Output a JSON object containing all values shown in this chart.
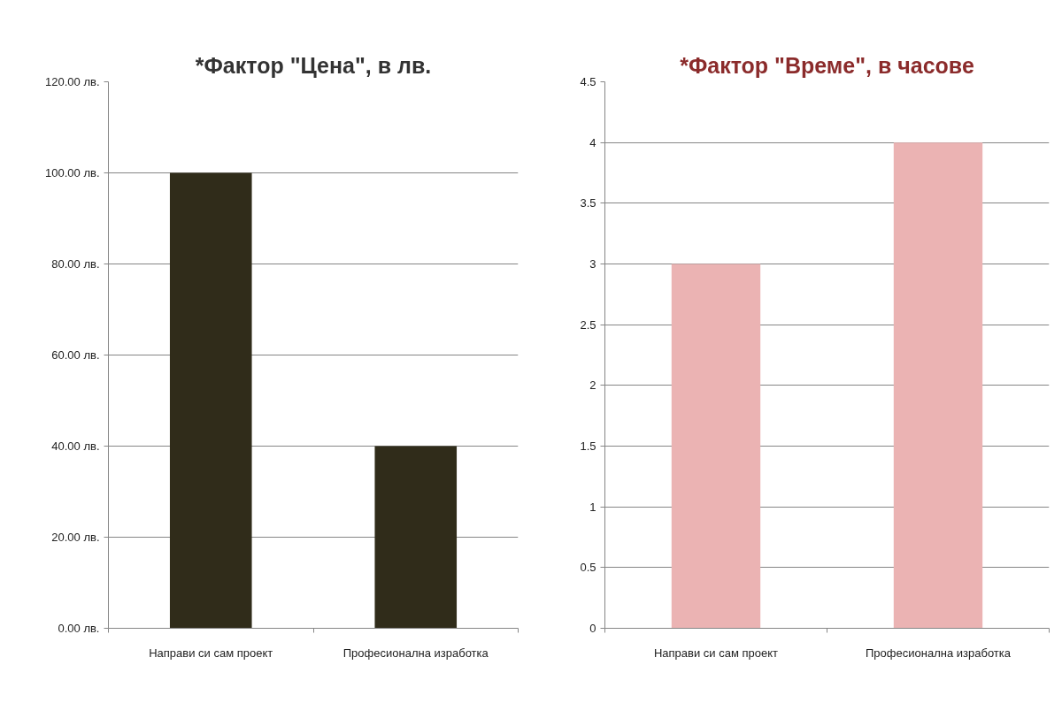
{
  "chart_data": [
    {
      "type": "bar",
      "title": "*Фактор \"Цена\", в лв.",
      "categories": [
        "Направи си сам проект",
        "Професионална изработка"
      ],
      "values": [
        100,
        40
      ],
      "color": "#302c1a",
      "ylim": [
        0,
        120
      ],
      "yticks": [
        {
          "value": 0,
          "label": "0.00 лв."
        },
        {
          "value": 20,
          "label": "20.00 лв."
        },
        {
          "value": 40,
          "label": "40.00 лв."
        },
        {
          "value": 60,
          "label": "60.00 лв."
        },
        {
          "value": 80,
          "label": "80.00 лв."
        },
        {
          "value": 100,
          "label": "100.00 лв."
        },
        {
          "value": 120,
          "label": "120.00 лв."
        }
      ],
      "grid": "y"
    },
    {
      "type": "bar",
      "title": "*Фактор \"Време\", в часове",
      "categories": [
        "Направи си сам проект",
        "Професионална изработка"
      ],
      "values": [
        3,
        4
      ],
      "color": "#ebb3b3",
      "ylim": [
        0,
        4.5
      ],
      "yticks": [
        0,
        0.5,
        1,
        1.5,
        2,
        2.5,
        3,
        3.5,
        4,
        4.5
      ],
      "grid": "y"
    }
  ]
}
